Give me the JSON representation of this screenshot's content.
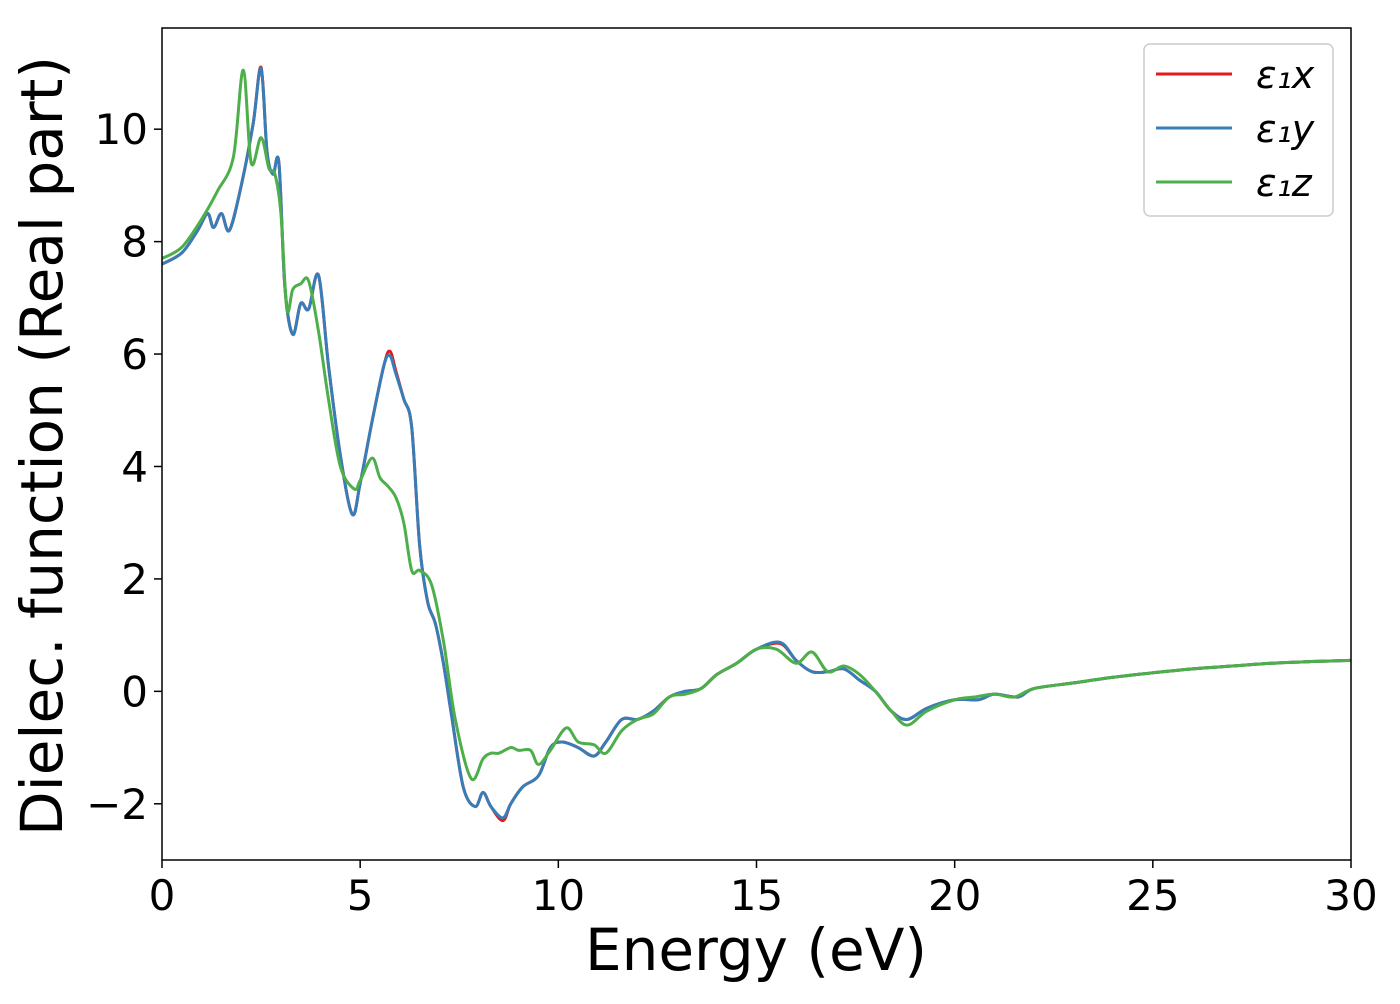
{
  "chart_data": {
    "type": "line",
    "title": "",
    "xlabel": "Energy (eV)",
    "ylabel": "Dielec. function (Real part)",
    "xlim": [
      0,
      30
    ],
    "ylim": [
      -3,
      11.8
    ],
    "x_ticks": [
      0,
      5,
      10,
      15,
      20,
      25,
      30
    ],
    "x_tick_labels": [
      "0",
      "5",
      "10",
      "15",
      "20",
      "25",
      "30"
    ],
    "y_ticks": [
      -2,
      0,
      2,
      4,
      6,
      8,
      10
    ],
    "y_tick_labels": [
      "−2",
      "0",
      "2",
      "4",
      "6",
      "8",
      "10"
    ],
    "grid": false,
    "legend_position": "top-right",
    "series": [
      {
        "name": "ε₁x",
        "color": "#e41a1c",
        "x": [
          0,
          0.5,
          0.9,
          1.15,
          1.3,
          1.5,
          1.7,
          2.0,
          2.3,
          2.5,
          2.65,
          2.8,
          2.95,
          3.1,
          3.3,
          3.5,
          3.7,
          3.95,
          4.2,
          4.5,
          4.8,
          5.0,
          5.3,
          5.6,
          5.75,
          5.9,
          6.1,
          6.3,
          6.5,
          6.7,
          6.9,
          7.1,
          7.3,
          7.6,
          7.9,
          8.1,
          8.3,
          8.6,
          8.8,
          9.1,
          9.5,
          9.8,
          10.1,
          10.5,
          10.9,
          11.2,
          11.6,
          12.0,
          12.4,
          12.8,
          13.2,
          13.6,
          14.0,
          14.5,
          15.0,
          15.6,
          16.0,
          16.4,
          16.8,
          17.2,
          17.6,
          18.0,
          18.4,
          18.8,
          19.3,
          20.0,
          20.6,
          21.0,
          21.6,
          22.0,
          23.0,
          24.0,
          25.0,
          26.0,
          27.0,
          28.0,
          29.0,
          30.0
        ],
        "values": [
          7.6,
          7.8,
          8.2,
          8.5,
          8.25,
          8.5,
          8.2,
          9.0,
          10.1,
          11.1,
          9.6,
          9.2,
          9.4,
          7.2,
          6.35,
          6.9,
          6.8,
          7.4,
          5.8,
          4.2,
          3.15,
          3.7,
          4.8,
          5.8,
          6.05,
          5.7,
          5.2,
          4.7,
          2.6,
          1.6,
          1.2,
          0.5,
          -0.4,
          -1.7,
          -2.05,
          -1.8,
          -2.05,
          -2.3,
          -2.0,
          -1.7,
          -1.5,
          -1.0,
          -0.9,
          -1.0,
          -1.15,
          -0.9,
          -0.5,
          -0.5,
          -0.35,
          -0.1,
          0.0,
          0.05,
          0.3,
          0.5,
          0.75,
          0.85,
          0.55,
          0.35,
          0.35,
          0.4,
          0.2,
          0.0,
          -0.35,
          -0.5,
          -0.3,
          -0.15,
          -0.15,
          -0.05,
          -0.1,
          0.05,
          0.15,
          0.25,
          0.33,
          0.4,
          0.45,
          0.5,
          0.53,
          0.55
        ]
      },
      {
        "name": "ε₁y",
        "color": "#377eb8",
        "x": [
          0,
          0.5,
          0.9,
          1.15,
          1.3,
          1.5,
          1.7,
          2.0,
          2.3,
          2.5,
          2.65,
          2.8,
          2.95,
          3.1,
          3.3,
          3.5,
          3.7,
          3.95,
          4.2,
          4.5,
          4.8,
          5.0,
          5.3,
          5.6,
          5.75,
          5.9,
          6.1,
          6.3,
          6.5,
          6.7,
          6.9,
          7.1,
          7.3,
          7.6,
          7.9,
          8.1,
          8.3,
          8.6,
          8.8,
          9.1,
          9.5,
          9.8,
          10.1,
          10.5,
          10.9,
          11.2,
          11.6,
          12.0,
          12.4,
          12.8,
          13.2,
          13.6,
          14.0,
          14.5,
          15.0,
          15.6,
          16.0,
          16.4,
          16.8,
          17.2,
          17.6,
          18.0,
          18.4,
          18.8,
          19.3,
          20.0,
          20.6,
          21.0,
          21.6,
          22.0,
          23.0,
          24.0,
          25.0,
          26.0,
          27.0,
          28.0,
          29.0,
          30.0
        ],
        "values": [
          7.6,
          7.8,
          8.2,
          8.5,
          8.25,
          8.5,
          8.2,
          9.0,
          10.1,
          11.08,
          9.6,
          9.2,
          9.4,
          7.2,
          6.35,
          6.9,
          6.8,
          7.4,
          5.8,
          4.2,
          3.15,
          3.7,
          4.8,
          5.8,
          5.97,
          5.65,
          5.2,
          4.7,
          2.6,
          1.6,
          1.2,
          0.5,
          -0.4,
          -1.7,
          -2.05,
          -1.8,
          -2.05,
          -2.25,
          -2.0,
          -1.7,
          -1.5,
          -1.0,
          -0.9,
          -1.0,
          -1.15,
          -0.9,
          -0.5,
          -0.5,
          -0.35,
          -0.1,
          0.0,
          0.05,
          0.3,
          0.5,
          0.75,
          0.87,
          0.55,
          0.35,
          0.35,
          0.4,
          0.2,
          0.0,
          -0.35,
          -0.5,
          -0.3,
          -0.15,
          -0.15,
          -0.05,
          -0.1,
          0.05,
          0.15,
          0.25,
          0.33,
          0.4,
          0.45,
          0.5,
          0.53,
          0.55
        ]
      },
      {
        "name": "ε₁z",
        "color": "#4daf4a",
        "x": [
          0,
          0.5,
          1.0,
          1.4,
          1.8,
          2.05,
          2.25,
          2.5,
          2.7,
          2.85,
          3.0,
          3.15,
          3.3,
          3.5,
          3.7,
          3.95,
          4.2,
          4.5,
          4.85,
          5.0,
          5.3,
          5.5,
          5.7,
          5.9,
          6.1,
          6.3,
          6.5,
          6.8,
          7.1,
          7.4,
          7.8,
          8.1,
          8.3,
          8.5,
          8.8,
          9.0,
          9.3,
          9.5,
          9.8,
          10.2,
          10.5,
          10.9,
          11.2,
          11.6,
          12.0,
          12.4,
          12.8,
          13.2,
          13.6,
          14.0,
          14.5,
          15.0,
          15.5,
          16.0,
          16.4,
          16.8,
          17.2,
          17.6,
          18.0,
          18.4,
          18.8,
          19.3,
          20.0,
          20.5,
          21.0,
          21.5,
          22.0,
          23.0,
          24.0,
          25.0,
          26.0,
          27.0,
          28.0,
          29.0,
          30.0
        ],
        "values": [
          7.7,
          7.9,
          8.4,
          8.9,
          9.5,
          11.05,
          9.4,
          9.85,
          9.3,
          9.2,
          8.5,
          6.8,
          7.15,
          7.25,
          7.3,
          6.4,
          5.2,
          4.0,
          3.6,
          3.75,
          4.15,
          3.8,
          3.65,
          3.45,
          3.0,
          2.15,
          2.15,
          1.9,
          0.9,
          -0.5,
          -1.55,
          -1.2,
          -1.1,
          -1.1,
          -1.0,
          -1.05,
          -1.05,
          -1.3,
          -1.05,
          -0.65,
          -0.9,
          -0.95,
          -1.1,
          -0.7,
          -0.5,
          -0.4,
          -0.1,
          -0.05,
          0.05,
          0.3,
          0.5,
          0.75,
          0.75,
          0.5,
          0.7,
          0.35,
          0.45,
          0.3,
          0.0,
          -0.35,
          -0.6,
          -0.35,
          -0.15,
          -0.1,
          -0.05,
          -0.1,
          0.05,
          0.15,
          0.25,
          0.33,
          0.4,
          0.45,
          0.5,
          0.53,
          0.55
        ]
      }
    ]
  }
}
